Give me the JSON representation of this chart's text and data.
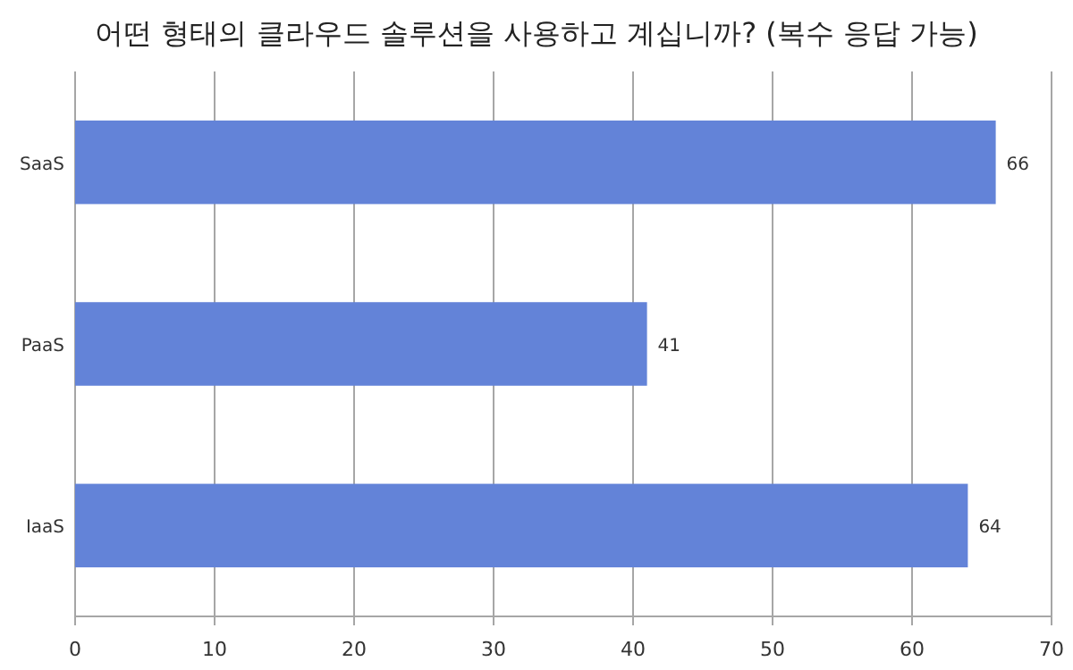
{
  "chart_data": {
    "type": "bar",
    "orientation": "horizontal",
    "title": "어떤 형태의 클라우드 솔루션을 사용하고 계십니까? (복수 응답 가능)",
    "categories": [
      "SaaS",
      "PaaS",
      "IaaS"
    ],
    "values": [
      66,
      41,
      64
    ],
    "color": "#6383d8",
    "xlim": [
      0,
      70
    ],
    "xticks": [
      0,
      10,
      20,
      30,
      40,
      50,
      60,
      70
    ],
    "grid": "x",
    "data_labels": true
  }
}
